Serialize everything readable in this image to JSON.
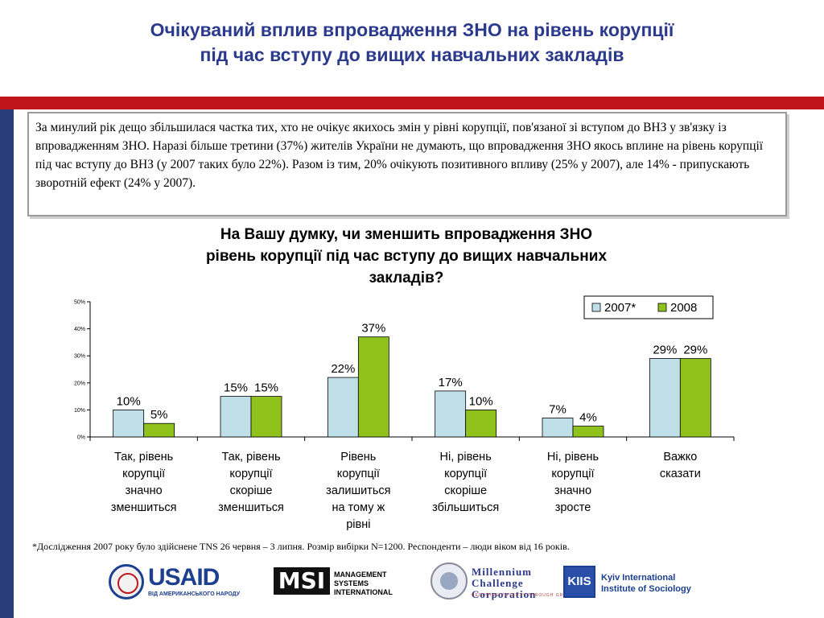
{
  "slide": {
    "title_line1": "Очікуваний вплив впровадження ЗНО на рівень корупції",
    "title_line2": "під час вступу до вищих навчальних закладів",
    "summary": "За минулий рік дещо збільшилася частка тих, хто не очікує якихось змін у рівні корупції, пов'язаної зі вступом до ВНЗ у зв'язку із впровадженням ЗНО. Наразі більше третини (37%) жителів України не думають, що впровадження ЗНО якось вплине на рівень корупції під час вступу до ВНЗ (у 2007 таких було 22%). Разом із тим, 20% очікують позитивного впливу (25% у 2007), але 14% - припускають зворотній ефект (24% у 2007).",
    "footnote": "*Дослідження 2007 року було здійснене TNS 26 червня – 3 липня. Розмір вибірки N=1200. Респонденти – люди віком від 16 років."
  },
  "chart_data": {
    "type": "bar",
    "title_line1": "На Вашу думку, чи зменшить впровадження ЗНО",
    "title_line2": "рівень корупції під час вступу до вищих навчальних",
    "title_line3": "закладів?",
    "categories": [
      [
        "Так, рівень",
        "корупції",
        "значно",
        "зменшиться"
      ],
      [
        "Так, рівень",
        "корупції",
        "скоріше",
        "зменшиться"
      ],
      [
        "Рівень",
        "корупції",
        "залишиться",
        "на тому ж",
        "рівні"
      ],
      [
        "Ні, рівень",
        "корупції",
        "скоріше",
        "збільшиться"
      ],
      [
        "Ні, рівень",
        "корупції",
        "значно",
        "зросте"
      ],
      [
        "Важко",
        "сказати"
      ]
    ],
    "series": [
      {
        "name": "2007*",
        "color": "#bfe0e8",
        "values": [
          10,
          15,
          22,
          17,
          7,
          29
        ]
      },
      {
        "name": "2008",
        "color": "#8fc21c",
        "values": [
          5,
          15,
          37,
          10,
          4,
          29
        ]
      }
    ],
    "y_ticks": [
      "0%",
      "10%",
      "20%",
      "30%",
      "40%",
      "50%"
    ],
    "ylim": [
      0,
      50
    ],
    "value_suffix": "%",
    "legend_position": "top-right",
    "grid": false
  },
  "logos": {
    "usaid": "USAID",
    "usaid_sub": "ВІД АМЕРИКАНСЬКОГО НАРОДУ",
    "msi_mark": "MSI",
    "msi_line1": "MANAGEMENT",
    "msi_line2": "SYSTEMS",
    "msi_line3": "INTERNATIONAL",
    "mcc_line1": "Millennium",
    "mcc_line2": "Challenge",
    "mcc_line3": "Corporation",
    "mcc_tag": "REDUCING POVERTY THROUGH GROWTH",
    "kiis_mark": "KIIS",
    "kiis_line1": "Kyiv International",
    "kiis_line2": "Institute of Sociology"
  }
}
